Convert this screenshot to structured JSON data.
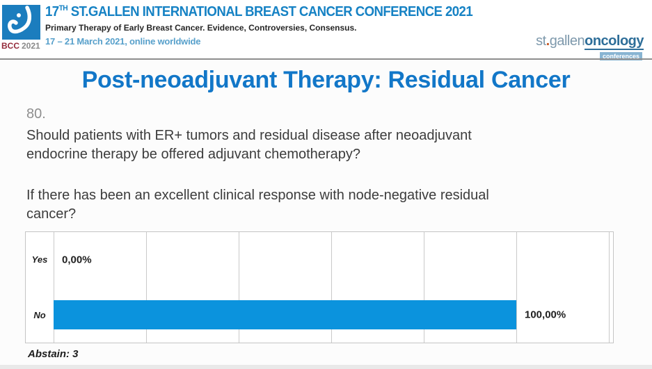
{
  "header": {
    "logo_caption": {
      "bcc": "BCC",
      "year": "2021"
    },
    "conference_title": {
      "number": "17",
      "ordinal": "TH",
      "rest": " ST.GALLEN INTERNATIONAL BREAST CANCER CONFERENCE 2021"
    },
    "subtitle": "Primary Therapy of Early Breast Cancer. Evidence, Controversies, Consensus.",
    "dates": "17 – 21 March 2021, online worldwide",
    "brand": {
      "st": "st",
      "dot": ".",
      "gallen": "gallen",
      "oncology": "oncology",
      "badge": "conferences"
    }
  },
  "slide": {
    "title": "Post-neoadjuvant Therapy: Residual Cancer",
    "question_number": "80.",
    "question1_lines": [
      "Should patients with ER+ tumors and residual disease after neoadjuvant",
      "endocrine therapy be offered adjuvant chemotherapy?"
    ],
    "question2_lines": [
      "If there has been an excellent clinical response with node-negative residual",
      "cancer?"
    ],
    "abstain_label": "Abstain: 3"
  },
  "chart_data": {
    "type": "bar",
    "orientation": "horizontal",
    "title": "",
    "categories": [
      "Yes",
      "No"
    ],
    "values": [
      0,
      100
    ],
    "value_labels": [
      "0,00%",
      "100,00%"
    ],
    "abstain": 3,
    "xlim": [
      0,
      120
    ],
    "gridline_step": 20,
    "grid": "vertical-gridlines-on",
    "legend": "none",
    "bar_color": "#0b93dd"
  },
  "colors": {
    "slide_title_blue": "#1277c8",
    "header_title_blue": "#1682c4",
    "dates_blue": "#57a0cb",
    "bar_blue": "#0b93dd",
    "bcc_maroon": "#942b3b",
    "brand_gray_blue": "#7e99ac",
    "brand_dark_blue": "#2e6e99",
    "badge_bg": "#88b4d2",
    "question_text": "#3c3c3c",
    "question_number_gray": "#8e8e8e"
  }
}
